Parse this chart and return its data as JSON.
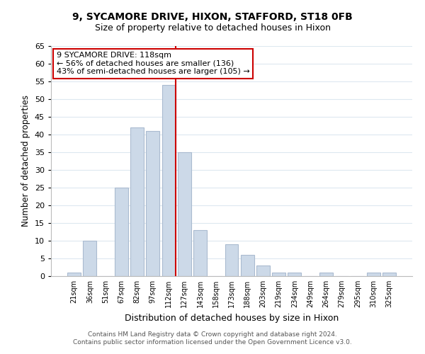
{
  "title": "9, SYCAMORE DRIVE, HIXON, STAFFORD, ST18 0FB",
  "subtitle": "Size of property relative to detached houses in Hixon",
  "xlabel": "Distribution of detached houses by size in Hixon",
  "ylabel": "Number of detached properties",
  "bar_labels": [
    "21sqm",
    "36sqm",
    "51sqm",
    "67sqm",
    "82sqm",
    "97sqm",
    "112sqm",
    "127sqm",
    "143sqm",
    "158sqm",
    "173sqm",
    "188sqm",
    "203sqm",
    "219sqm",
    "234sqm",
    "249sqm",
    "264sqm",
    "279sqm",
    "295sqm",
    "310sqm",
    "325sqm"
  ],
  "bar_values": [
    1,
    10,
    0,
    25,
    42,
    41,
    54,
    35,
    13,
    0,
    9,
    6,
    3,
    1,
    1,
    0,
    1,
    0,
    0,
    1,
    1
  ],
  "bar_color": "#ccd9e8",
  "bar_edge_color": "#aabbd0",
  "ylim": [
    0,
    65
  ],
  "yticks": [
    0,
    5,
    10,
    15,
    20,
    25,
    30,
    35,
    40,
    45,
    50,
    55,
    60,
    65
  ],
  "vline_index": 6,
  "vline_color": "#cc0000",
  "annotation_title": "9 SYCAMORE DRIVE: 118sqm",
  "annotation_line1": "← 56% of detached houses are smaller (136)",
  "annotation_line2": "43% of semi-detached houses are larger (105) →",
  "annotation_box_color": "#ffffff",
  "annotation_box_edge_color": "#cc0000",
  "footer_line1": "Contains HM Land Registry data © Crown copyright and database right 2024.",
  "footer_line2": "Contains public sector information licensed under the Open Government Licence v3.0.",
  "background_color": "#ffffff",
  "grid_color": "#dde8f0"
}
